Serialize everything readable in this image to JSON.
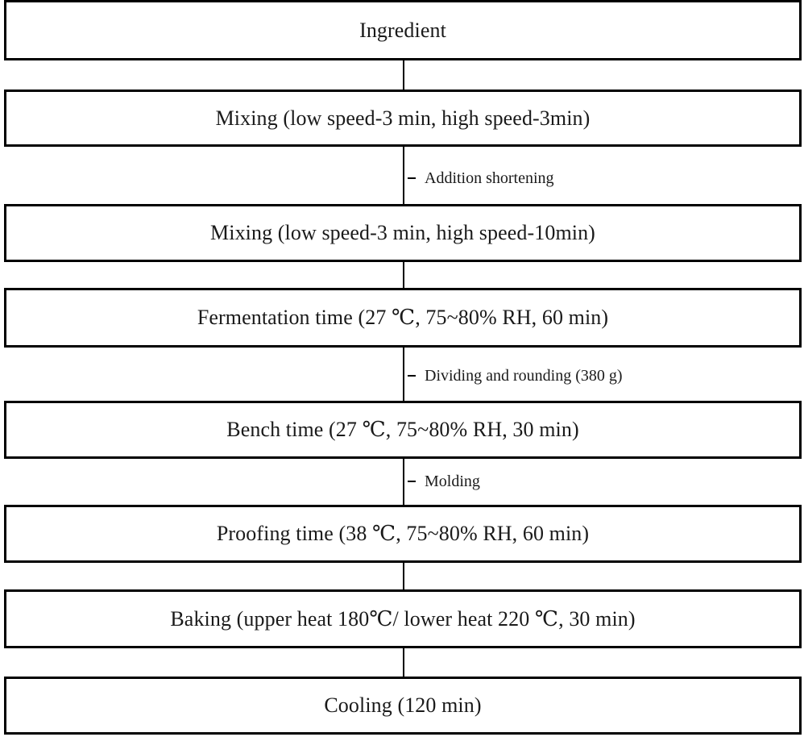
{
  "steps": [
    {
      "label": "Ingredient"
    },
    {
      "label": "Mixing (low speed-3 min, high speed-3min)"
    },
    {
      "label": "Mixing (low speed-3 min, high speed-10min)"
    },
    {
      "label": "Fermentation time (27 ℃, 75~80% RH, 60 min)"
    },
    {
      "label": "Bench time (27 ℃, 75~80% RH, 30 min)"
    },
    {
      "label": "Proofing time (38 ℃, 75~80% RH, 60 min)"
    },
    {
      "label": "Baking (upper heat 180℃/ lower heat 220 ℃, 30 min)"
    },
    {
      "label": "Cooling (120 min)"
    }
  ],
  "annotations": [
    {
      "label": "Addition shortening"
    },
    {
      "label": "Dividing and rounding (380 g)"
    },
    {
      "label": "Molding"
    }
  ]
}
